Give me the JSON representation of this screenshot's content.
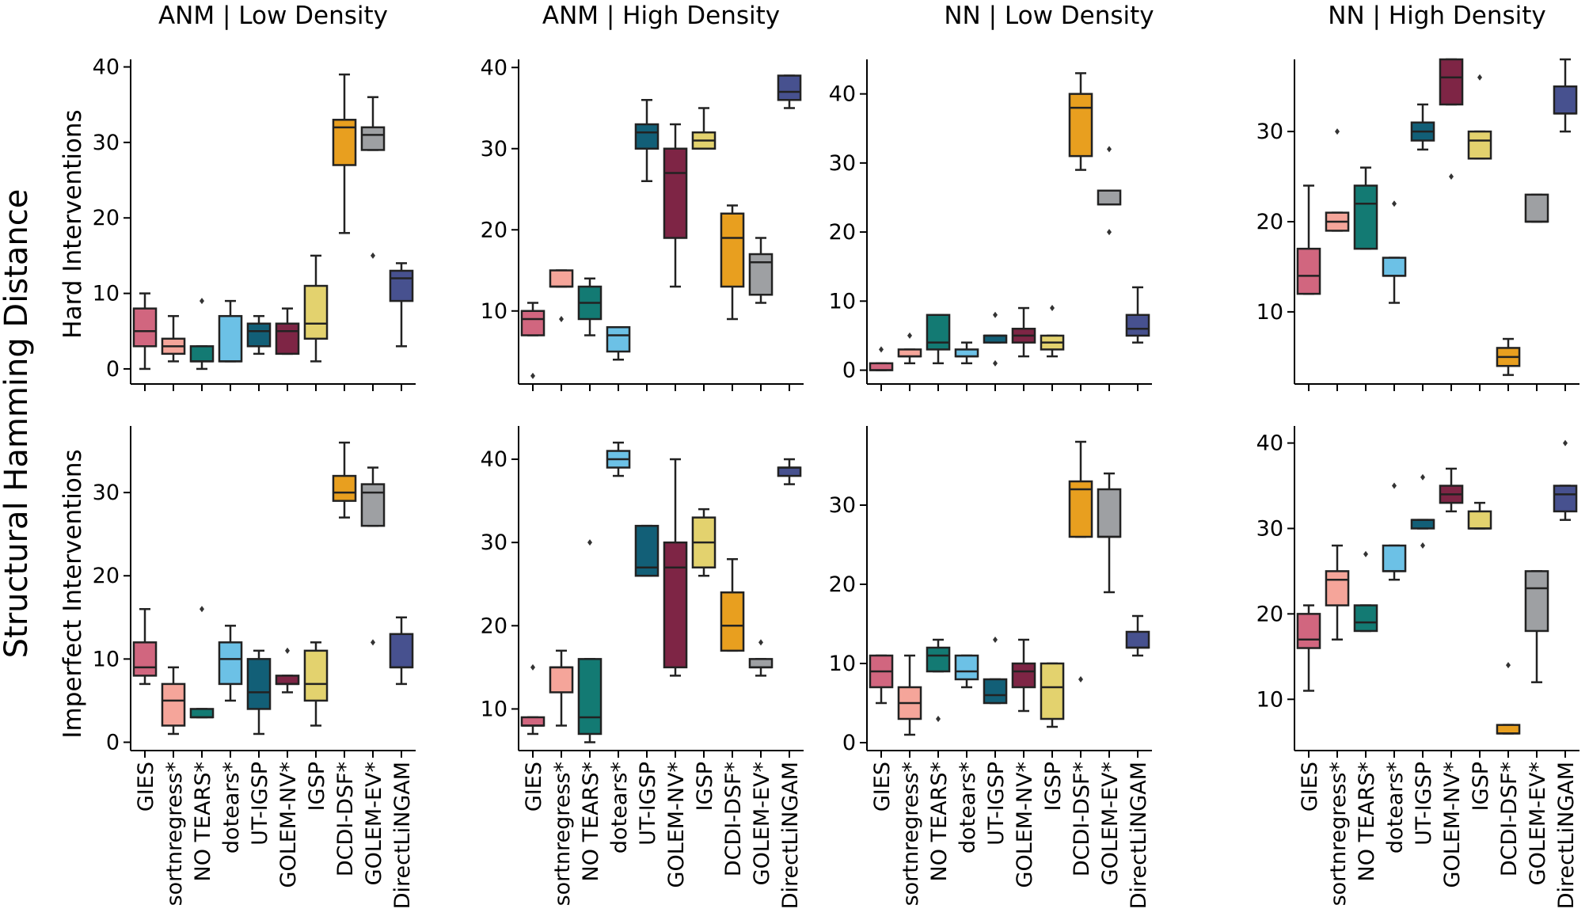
{
  "figure": {
    "ylabel": "Structural Hamming Distance",
    "row_labels": [
      "Hard Interventions",
      "Imperfect Interventions"
    ],
    "col_titles": [
      "ANM | Low Density",
      "ANM | High Density",
      "NN | Low Density",
      "NN | High Density"
    ]
  },
  "methods": [
    "GIES",
    "sortnregress*",
    "NO TEARS*",
    "dotears*",
    "UT-IGSP",
    "GOLEM-NV*",
    "IGSP",
    "DCDI-DSF*",
    "GOLEM-EV*",
    "DirectLiNGAM"
  ],
  "method_colors": [
    "#d1667f",
    "#f5a59a",
    "#137a73",
    "#6cc1e6",
    "#125f77",
    "#7e2545",
    "#e3d26e",
    "#e89f1f",
    "#9ea0a3",
    "#47518f"
  ],
  "chart_data": [
    {
      "type": "box",
      "title": "ANM | Low Density",
      "ylabel": "Hard Interventions",
      "ylim": [
        -2,
        41
      ],
      "yticks": [
        0,
        10,
        20,
        30,
        40
      ],
      "boxes": [
        {
          "q1": 3,
          "median": 5,
          "q3": 8,
          "whislo": 0,
          "whishi": 10,
          "fliers": []
        },
        {
          "q1": 2,
          "median": 3,
          "q3": 4,
          "whislo": 1,
          "whishi": 7,
          "fliers": []
        },
        {
          "q1": 1,
          "median": 1,
          "q3": 3,
          "whislo": 0,
          "whishi": 3,
          "fliers": [
            9
          ]
        },
        {
          "q1": 1,
          "median": 1,
          "q3": 7,
          "whislo": 1,
          "whishi": 9,
          "fliers": []
        },
        {
          "q1": 3,
          "median": 5,
          "q3": 6,
          "whislo": 2,
          "whishi": 7,
          "fliers": []
        },
        {
          "q1": 2,
          "median": 5,
          "q3": 6,
          "whislo": 2,
          "whishi": 8,
          "fliers": []
        },
        {
          "q1": 4,
          "median": 6,
          "q3": 11,
          "whislo": 1,
          "whishi": 15,
          "fliers": []
        },
        {
          "q1": 27,
          "median": 32,
          "q3": 33,
          "whislo": 18,
          "whishi": 39,
          "fliers": []
        },
        {
          "q1": 29,
          "median": 31,
          "q3": 32,
          "whislo": 29,
          "whishi": 36,
          "fliers": [
            15
          ]
        },
        {
          "q1": 9,
          "median": 12,
          "q3": 13,
          "whislo": 3,
          "whishi": 14,
          "fliers": []
        }
      ]
    },
    {
      "type": "box",
      "title": "ANM | High Density",
      "ylabel": "Hard Interventions",
      "ylim": [
        1,
        41
      ],
      "yticks": [
        10,
        20,
        30,
        40
      ],
      "boxes": [
        {
          "q1": 7,
          "median": 9,
          "q3": 10,
          "whislo": 7,
          "whishi": 11,
          "fliers": [
            2
          ]
        },
        {
          "q1": 13,
          "median": 13,
          "q3": 15,
          "whislo": 13,
          "whishi": 15,
          "fliers": [
            9
          ]
        },
        {
          "q1": 9,
          "median": 11,
          "q3": 13,
          "whislo": 7,
          "whishi": 14,
          "fliers": []
        },
        {
          "q1": 5,
          "median": 7,
          "q3": 8,
          "whislo": 4,
          "whishi": 8,
          "fliers": []
        },
        {
          "q1": 30,
          "median": 32,
          "q3": 33,
          "whislo": 26,
          "whishi": 36,
          "fliers": []
        },
        {
          "q1": 19,
          "median": 27,
          "q3": 30,
          "whislo": 13,
          "whishi": 33,
          "fliers": []
        },
        {
          "q1": 30,
          "median": 31,
          "q3": 32,
          "whislo": 30,
          "whishi": 35,
          "fliers": []
        },
        {
          "q1": 13,
          "median": 19,
          "q3": 22,
          "whislo": 9,
          "whishi": 23,
          "fliers": []
        },
        {
          "q1": 12,
          "median": 16,
          "q3": 17,
          "whislo": 11,
          "whishi": 19,
          "fliers": []
        },
        {
          "q1": 36,
          "median": 37,
          "q3": 39,
          "whislo": 35,
          "whishi": 39,
          "fliers": []
        }
      ]
    },
    {
      "type": "box",
      "title": "NN | Low Density",
      "ylabel": "Hard Interventions",
      "ylim": [
        -2,
        45
      ],
      "yticks": [
        0,
        10,
        20,
        30,
        40
      ],
      "boxes": [
        {
          "q1": 0,
          "median": 0,
          "q3": 1,
          "whislo": 0,
          "whishi": 1,
          "fliers": [
            3
          ]
        },
        {
          "q1": 2,
          "median": 2,
          "q3": 3,
          "whislo": 1,
          "whishi": 3,
          "fliers": [
            5
          ]
        },
        {
          "q1": 3,
          "median": 4,
          "q3": 8,
          "whislo": 1,
          "whishi": 8,
          "fliers": []
        },
        {
          "q1": 2,
          "median": 2,
          "q3": 3,
          "whislo": 1,
          "whishi": 4,
          "fliers": []
        },
        {
          "q1": 4,
          "median": 5,
          "q3": 5,
          "whislo": 4,
          "whishi": 5,
          "fliers": [
            1,
            8
          ]
        },
        {
          "q1": 4,
          "median": 5,
          "q3": 6,
          "whislo": 2,
          "whishi": 9,
          "fliers": []
        },
        {
          "q1": 3,
          "median": 4,
          "q3": 5,
          "whislo": 2,
          "whishi": 5,
          "fliers": [
            9
          ]
        },
        {
          "q1": 31,
          "median": 38,
          "q3": 40,
          "whislo": 29,
          "whishi": 43,
          "fliers": []
        },
        {
          "q1": 24,
          "median": 24,
          "q3": 26,
          "whislo": 24,
          "whishi": 26,
          "fliers": [
            20,
            32
          ]
        },
        {
          "q1": 5,
          "median": 6,
          "q3": 8,
          "whislo": 4,
          "whishi": 12,
          "fliers": []
        }
      ]
    },
    {
      "type": "box",
      "title": "NN | High Density",
      "ylabel": "Hard Interventions",
      "ylim": [
        2,
        38
      ],
      "yticks": [
        10,
        20,
        30
      ],
      "boxes": [
        {
          "q1": 12,
          "median": 14,
          "q3": 17,
          "whislo": 12,
          "whishi": 24,
          "fliers": []
        },
        {
          "q1": 19,
          "median": 20,
          "q3": 21,
          "whislo": 19,
          "whishi": 21,
          "fliers": [
            30
          ]
        },
        {
          "q1": 17,
          "median": 22,
          "q3": 24,
          "whislo": 17,
          "whishi": 26,
          "fliers": []
        },
        {
          "q1": 14,
          "median": 14,
          "q3": 16,
          "whislo": 11,
          "whishi": 16,
          "fliers": [
            22
          ]
        },
        {
          "q1": 29,
          "median": 30,
          "q3": 31,
          "whislo": 28,
          "whishi": 33,
          "fliers": []
        },
        {
          "q1": 33,
          "median": 36,
          "q3": 38,
          "whislo": 33,
          "whishi": 38,
          "fliers": [
            25
          ]
        },
        {
          "q1": 27,
          "median": 29,
          "q3": 30,
          "whislo": 27,
          "whishi": 30,
          "fliers": [
            36
          ]
        },
        {
          "q1": 4,
          "median": 5,
          "q3": 6,
          "whislo": 3,
          "whishi": 7,
          "fliers": []
        },
        {
          "q1": 20,
          "median": 20,
          "q3": 23,
          "whislo": 20,
          "whishi": 23,
          "fliers": []
        },
        {
          "q1": 32,
          "median": 32,
          "q3": 35,
          "whislo": 30,
          "whishi": 38,
          "fliers": []
        }
      ]
    },
    {
      "type": "box",
      "title": "ANM | Low Density",
      "ylabel": "Imperfect Interventions",
      "ylim": [
        -1,
        38
      ],
      "yticks": [
        0,
        10,
        20,
        30
      ],
      "boxes": [
        {
          "q1": 8,
          "median": 9,
          "q3": 12,
          "whislo": 7,
          "whishi": 16,
          "fliers": []
        },
        {
          "q1": 2,
          "median": 5,
          "q3": 7,
          "whislo": 1,
          "whishi": 9,
          "fliers": []
        },
        {
          "q1": 3,
          "median": 3,
          "q3": 4,
          "whislo": 3,
          "whishi": 4,
          "fliers": [
            16
          ]
        },
        {
          "q1": 7,
          "median": 10,
          "q3": 12,
          "whislo": 5,
          "whishi": 14,
          "fliers": []
        },
        {
          "q1": 4,
          "median": 6,
          "q3": 10,
          "whislo": 1,
          "whishi": 11,
          "fliers": []
        },
        {
          "q1": 7,
          "median": 7,
          "q3": 8,
          "whislo": 6,
          "whishi": 8,
          "fliers": [
            11
          ]
        },
        {
          "q1": 5,
          "median": 7,
          "q3": 11,
          "whislo": 2,
          "whishi": 12,
          "fliers": []
        },
        {
          "q1": 29,
          "median": 30,
          "q3": 32,
          "whislo": 27,
          "whishi": 36,
          "fliers": []
        },
        {
          "q1": 26,
          "median": 30,
          "q3": 31,
          "whislo": 26,
          "whishi": 33,
          "fliers": [
            12
          ]
        },
        {
          "q1": 9,
          "median": 9,
          "q3": 13,
          "whislo": 7,
          "whishi": 15,
          "fliers": []
        }
      ]
    },
    {
      "type": "box",
      "title": "ANM | High Density",
      "ylabel": "Imperfect Interventions",
      "ylim": [
        5,
        44
      ],
      "yticks": [
        10,
        20,
        30,
        40
      ],
      "boxes": [
        {
          "q1": 8,
          "median": 8,
          "q3": 9,
          "whislo": 7,
          "whishi": 9,
          "fliers": [
            15
          ]
        },
        {
          "q1": 12,
          "median": 15,
          "q3": 15,
          "whislo": 8,
          "whishi": 17,
          "fliers": []
        },
        {
          "q1": 7,
          "median": 9,
          "q3": 16,
          "whislo": 6,
          "whishi": 16,
          "fliers": [
            30
          ]
        },
        {
          "q1": 39,
          "median": 40,
          "q3": 41,
          "whislo": 38,
          "whishi": 42,
          "fliers": []
        },
        {
          "q1": 26,
          "median": 27,
          "q3": 32,
          "whislo": 26,
          "whishi": 32,
          "fliers": []
        },
        {
          "q1": 15,
          "median": 27,
          "q3": 30,
          "whislo": 14,
          "whishi": 40,
          "fliers": []
        },
        {
          "q1": 27,
          "median": 30,
          "q3": 33,
          "whislo": 26,
          "whishi": 34,
          "fliers": []
        },
        {
          "q1": 17,
          "median": 20,
          "q3": 24,
          "whislo": 17,
          "whishi": 28,
          "fliers": []
        },
        {
          "q1": 15,
          "median": 15,
          "q3": 16,
          "whislo": 14,
          "whishi": 16,
          "fliers": [
            18
          ]
        },
        {
          "q1": 38,
          "median": 39,
          "q3": 39,
          "whislo": 37,
          "whishi": 40,
          "fliers": []
        }
      ]
    },
    {
      "type": "box",
      "title": "NN | Low Density",
      "ylabel": "Imperfect Interventions",
      "ylim": [
        -1,
        40
      ],
      "yticks": [
        0,
        10,
        20,
        30
      ],
      "boxes": [
        {
          "q1": 7,
          "median": 9,
          "q3": 11,
          "whislo": 5,
          "whishi": 11,
          "fliers": []
        },
        {
          "q1": 3,
          "median": 5,
          "q3": 7,
          "whislo": 1,
          "whishi": 11,
          "fliers": []
        },
        {
          "q1": 9,
          "median": 11,
          "q3": 12,
          "whislo": 9,
          "whishi": 13,
          "fliers": [
            3
          ]
        },
        {
          "q1": 8,
          "median": 9,
          "q3": 11,
          "whislo": 7,
          "whishi": 11,
          "fliers": []
        },
        {
          "q1": 5,
          "median": 6,
          "q3": 8,
          "whislo": 5,
          "whishi": 8,
          "fliers": [
            13
          ]
        },
        {
          "q1": 7,
          "median": 9,
          "q3": 10,
          "whislo": 4,
          "whishi": 13,
          "fliers": []
        },
        {
          "q1": 3,
          "median": 7,
          "q3": 10,
          "whislo": 2,
          "whishi": 10,
          "fliers": []
        },
        {
          "q1": 26,
          "median": 32,
          "q3": 33,
          "whislo": 26,
          "whishi": 38,
          "fliers": [
            8
          ]
        },
        {
          "q1": 26,
          "median": 26,
          "q3": 32,
          "whislo": 19,
          "whishi": 34,
          "fliers": []
        },
        {
          "q1": 12,
          "median": 12,
          "q3": 14,
          "whislo": 11,
          "whishi": 16,
          "fliers": []
        }
      ]
    },
    {
      "type": "box",
      "title": "NN | High Density",
      "ylabel": "Imperfect Interventions",
      "ylim": [
        4,
        42
      ],
      "yticks": [
        10,
        20,
        30,
        40
      ],
      "boxes": [
        {
          "q1": 16,
          "median": 17,
          "q3": 20,
          "whislo": 11,
          "whishi": 21,
          "fliers": []
        },
        {
          "q1": 21,
          "median": 24,
          "q3": 25,
          "whislo": 17,
          "whishi": 28,
          "fliers": []
        },
        {
          "q1": 18,
          "median": 19,
          "q3": 21,
          "whislo": 18,
          "whishi": 21,
          "fliers": [
            27
          ]
        },
        {
          "q1": 25,
          "median": 25,
          "q3": 28,
          "whislo": 24,
          "whishi": 28,
          "fliers": [
            35
          ]
        },
        {
          "q1": 30,
          "median": 31,
          "q3": 31,
          "whislo": 30,
          "whishi": 31,
          "fliers": [
            28,
            36
          ]
        },
        {
          "q1": 33,
          "median": 34,
          "q3": 35,
          "whislo": 32,
          "whishi": 37,
          "fliers": []
        },
        {
          "q1": 30,
          "median": 30,
          "q3": 32,
          "whislo": 30,
          "whishi": 33,
          "fliers": []
        },
        {
          "q1": 6,
          "median": 6,
          "q3": 7,
          "whislo": 6,
          "whishi": 7,
          "fliers": [
            14
          ]
        },
        {
          "q1": 18,
          "median": 23,
          "q3": 25,
          "whislo": 12,
          "whishi": 25,
          "fliers": []
        },
        {
          "q1": 32,
          "median": 34,
          "q3": 35,
          "whislo": 31,
          "whishi": 35,
          "fliers": [
            40
          ]
        }
      ]
    }
  ]
}
